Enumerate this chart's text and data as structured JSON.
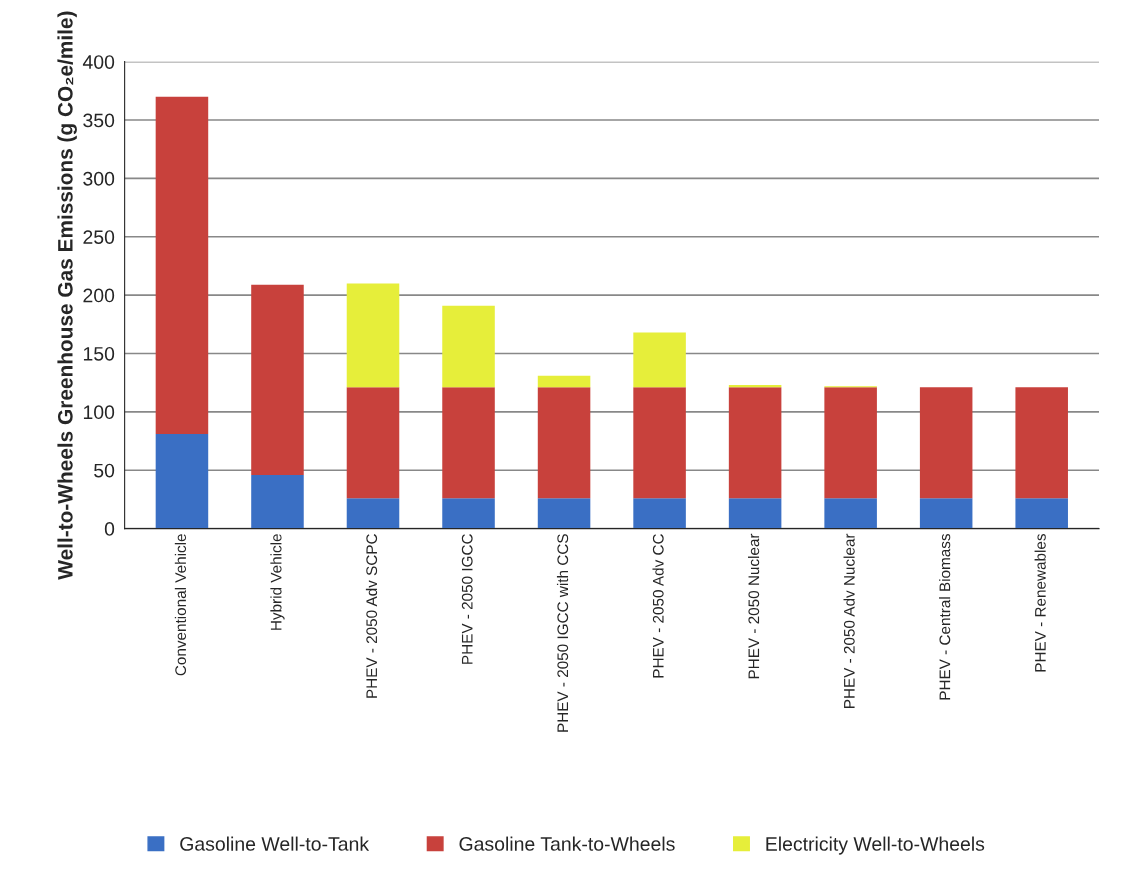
{
  "chart_data": {
    "type": "bar",
    "stacked": true,
    "ylabel": "Well-to-Wheels Greenhouse Gas Emissions (g CO₂e/mile)",
    "categories": [
      "Conventional Vehicle",
      "Hybrid Vehicle",
      "PHEV - 2050 Adv SCPC",
      "PHEV - 2050 IGCC",
      "PHEV - 2050 IGCC with CCS",
      "PHEV - 2050 Adv CC",
      "PHEV - 2050 Nuclear",
      "PHEV - 2050 Adv Nuclear",
      "PHEV - Central Biomass",
      "PHEV - Renewables"
    ],
    "series": [
      {
        "name": "Gasoline Well-to-Tank",
        "color": "#3a6fc4",
        "values": [
          81,
          46,
          26,
          26,
          26,
          26,
          26,
          26,
          26,
          26
        ]
      },
      {
        "name": "Gasoline Tank-to-Wheels",
        "color": "#c8413c",
        "values": [
          289,
          163,
          95,
          95,
          95,
          95,
          95,
          95,
          95,
          95
        ]
      },
      {
        "name": "Electricity Well-to-Wheels",
        "color": "#e6ee3a",
        "values": [
          0,
          0,
          89,
          70,
          10,
          47,
          2,
          1,
          0,
          0
        ]
      }
    ],
    "ylim": [
      0,
      400
    ],
    "yticks": [
      0,
      50,
      100,
      150,
      200,
      250,
      300,
      350,
      400
    ],
    "grid": "y",
    "legend": "bottom"
  }
}
